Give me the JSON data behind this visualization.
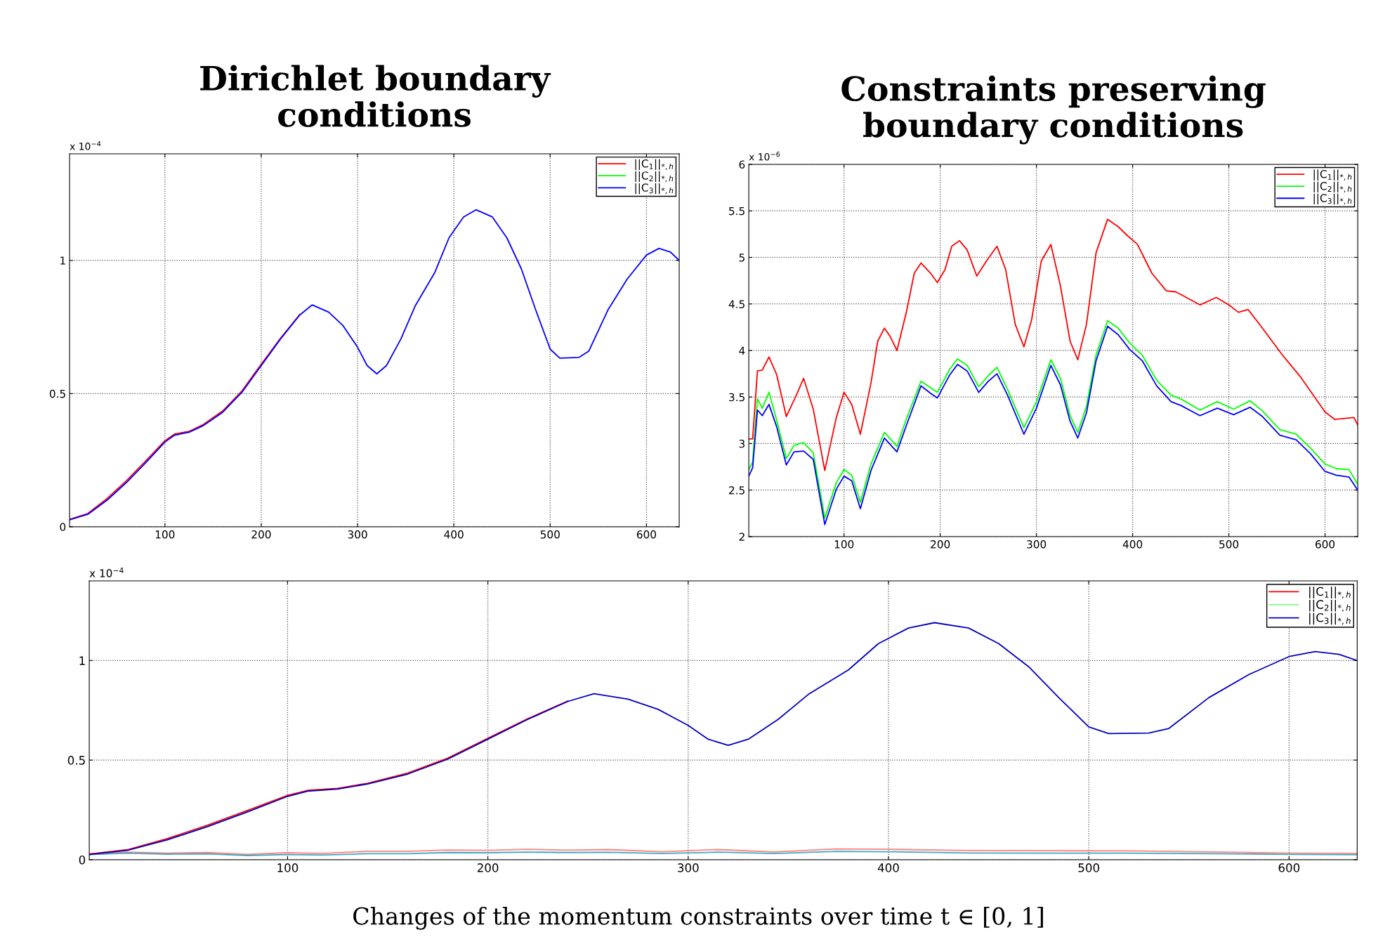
{
  "chart_data": [
    {
      "type": "line",
      "title": "Dirichlet boundary\nconditions",
      "xlim": [
        1,
        634
      ],
      "ylim": [
        0,
        1.4
      ],
      "xticks": [
        100,
        200,
        300,
        400,
        500,
        600
      ],
      "yticks": [
        0,
        0.5,
        1
      ],
      "grid": true,
      "legend": "top right",
      "line_style": "solid",
      "annotations": [
        "x 10$^{−4}$"
      ],
      "series": [
        {
          "name": "||C$_{1}$||$_{*,h}$",
          "color": "#ff0000",
          "x": [
            1,
            20,
            40,
            60,
            80,
            100,
            110,
            125,
            140,
            160,
            180,
            200,
            220,
            240
          ],
          "values": [
            0.028,
            0.05,
            0.106,
            0.173,
            0.247,
            0.323,
            0.348,
            0.358,
            0.384,
            0.435,
            0.51,
            0.61,
            0.708,
            0.797
          ]
        },
        {
          "name": "||C$_{2}$||$_{*,h}$",
          "color": "#00ff00"
        },
        {
          "name": "||C$_{3}$||$_{*,h}$",
          "color": "#0000ff",
          "x": [
            1,
            20,
            40,
            60,
            80,
            100,
            110,
            125,
            140,
            160,
            180,
            200,
            220,
            240,
            253,
            270,
            285,
            300,
            310,
            320,
            330,
            345,
            360,
            380,
            395,
            410,
            423,
            440,
            455,
            470,
            485,
            500,
            510,
            530,
            540,
            560,
            580,
            600,
            613,
            625,
            634
          ],
          "values": [
            0.026,
            0.047,
            0.1,
            0.166,
            0.24,
            0.318,
            0.344,
            0.355,
            0.38,
            0.43,
            0.505,
            0.605,
            0.705,
            0.795,
            0.833,
            0.806,
            0.755,
            0.674,
            0.605,
            0.574,
            0.605,
            0.705,
            0.83,
            0.953,
            1.085,
            1.163,
            1.19,
            1.163,
            1.085,
            0.969,
            0.814,
            0.667,
            0.633,
            0.636,
            0.659,
            0.814,
            0.93,
            1.02,
            1.045,
            1.031,
            1.0
          ]
        }
      ]
    },
    {
      "type": "line",
      "title": "Constraints preserving\nboundary conditions",
      "xlim": [
        1,
        634
      ],
      "ylim": [
        2,
        6
      ],
      "xticks": [
        100,
        200,
        300,
        400,
        500,
        600
      ],
      "yticks": [
        2,
        2.5,
        3,
        3.5,
        4,
        4.5,
        5,
        5.5,
        6
      ],
      "grid": true,
      "legend": "top right",
      "line_style": "solid",
      "annotations": [
        "x 10$^{−6}$"
      ],
      "series": [
        {
          "name": "||C$_{1}$||$_{*,h}$",
          "color": "#ff0000",
          "x": [
            1,
            5,
            10,
            15,
            22,
            30,
            40,
            50,
            58,
            68,
            80,
            92,
            100,
            108,
            117,
            128,
            135,
            142,
            148,
            155,
            165,
            173,
            180,
            190,
            197,
            205,
            212,
            220,
            228,
            238,
            248,
            259,
            268,
            278,
            287,
            295,
            305,
            315,
            325,
            335,
            343,
            352,
            362,
            374,
            385,
            395,
            405,
            420,
            435,
            445,
            470,
            487,
            500,
            510,
            520,
            535,
            555,
            575,
            600,
            610,
            630,
            634
          ],
          "values": [
            3.05,
            3.05,
            3.78,
            3.79,
            3.93,
            3.74,
            3.29,
            3.51,
            3.7,
            3.37,
            2.71,
            3.28,
            3.55,
            3.42,
            3.1,
            3.65,
            4.1,
            4.24,
            4.15,
            4.0,
            4.42,
            4.83,
            4.94,
            4.83,
            4.73,
            4.87,
            5.12,
            5.18,
            5.08,
            4.8,
            4.96,
            5.12,
            4.87,
            4.28,
            4.04,
            4.33,
            4.96,
            5.14,
            4.69,
            4.1,
            3.9,
            4.28,
            5.05,
            5.41,
            5.33,
            5.23,
            5.14,
            4.83,
            4.64,
            4.63,
            4.49,
            4.57,
            4.49,
            4.41,
            4.44,
            4.24,
            3.96,
            3.71,
            3.34,
            3.26,
            3.28,
            3.2
          ]
        },
        {
          "name": "||C$_{2}$||$_{*,h}$",
          "color": "#00ff00",
          "x": [
            1,
            5,
            10,
            15,
            22,
            30,
            40,
            48,
            58,
            68,
            80,
            92,
            100,
            108,
            117,
            128,
            142,
            155,
            165,
            180,
            190,
            197,
            210,
            218,
            228,
            240,
            250,
            259,
            270,
            287,
            300,
            315,
            325,
            335,
            343,
            352,
            362,
            374,
            385,
            397,
            410,
            425,
            440,
            450,
            470,
            488,
            505,
            522,
            535,
            553,
            570,
            585,
            600,
            612,
            625,
            634
          ],
          "values": [
            2.72,
            2.8,
            3.48,
            3.38,
            3.55,
            3.25,
            2.84,
            2.98,
            3.01,
            2.9,
            2.2,
            2.58,
            2.72,
            2.66,
            2.37,
            2.78,
            3.12,
            2.97,
            3.27,
            3.67,
            3.6,
            3.55,
            3.8,
            3.91,
            3.84,
            3.61,
            3.73,
            3.82,
            3.58,
            3.17,
            3.45,
            3.9,
            3.7,
            3.3,
            3.12,
            3.4,
            3.95,
            4.32,
            4.24,
            4.08,
            3.95,
            3.68,
            3.52,
            3.48,
            3.36,
            3.45,
            3.37,
            3.46,
            3.35,
            3.15,
            3.1,
            2.95,
            2.78,
            2.73,
            2.72,
            2.56
          ]
        },
        {
          "name": "||C$_{3}$||$_{*,h}$",
          "color": "#0000ff",
          "x": [
            1,
            5,
            10,
            15,
            22,
            30,
            40,
            48,
            58,
            68,
            80,
            92,
            100,
            108,
            117,
            128,
            142,
            155,
            165,
            180,
            190,
            197,
            210,
            218,
            228,
            240,
            250,
            259,
            270,
            287,
            300,
            315,
            325,
            335,
            343,
            352,
            362,
            374,
            385,
            397,
            410,
            425,
            440,
            450,
            470,
            488,
            505,
            522,
            535,
            553,
            570,
            585,
            600,
            612,
            625,
            634
          ],
          "values": [
            2.65,
            2.74,
            3.36,
            3.3,
            3.42,
            3.18,
            2.77,
            2.91,
            2.92,
            2.83,
            2.13,
            2.51,
            2.65,
            2.6,
            2.3,
            2.71,
            3.06,
            2.91,
            3.2,
            3.62,
            3.54,
            3.49,
            3.74,
            3.85,
            3.78,
            3.55,
            3.67,
            3.75,
            3.52,
            3.1,
            3.38,
            3.84,
            3.63,
            3.24,
            3.06,
            3.33,
            3.89,
            4.26,
            4.17,
            4.01,
            3.89,
            3.62,
            3.45,
            3.41,
            3.3,
            3.38,
            3.31,
            3.39,
            3.29,
            3.09,
            3.04,
            2.89,
            2.7,
            2.66,
            2.64,
            2.5
          ]
        }
      ]
    },
    {
      "type": "line",
      "xlim": [
        1,
        634
      ],
      "ylim": [
        0,
        1.4
      ],
      "xticks": [
        100,
        200,
        300,
        400,
        500,
        600
      ],
      "yticks": [
        0,
        0.5,
        1
      ],
      "grid": true,
      "legend": "top right",
      "line_style": "solid",
      "annotations": [
        "x 10$^{−4}$",
        "Changes of the momentum constraints over time t ∈ [0, 1]"
      ],
      "series": [
        {
          "color": "#ff8080",
          "x": [
            1,
            20,
            40,
            60,
            80,
            100,
            117,
            140,
            160,
            180,
            200,
            220,
            240,
            260,
            287,
            315,
            343,
            374,
            400,
            440,
            480,
            520,
            560,
            600,
            634
          ],
          "values": [
            0.03,
            0.038,
            0.033,
            0.036,
            0.027,
            0.035,
            0.031,
            0.042,
            0.042,
            0.049,
            0.047,
            0.052,
            0.048,
            0.051,
            0.04,
            0.051,
            0.039,
            0.054,
            0.052,
            0.046,
            0.045,
            0.044,
            0.039,
            0.033,
            0.032
          ]
        },
        {
          "color": "#40a8c0",
          "x": [
            1,
            20,
            40,
            60,
            80,
            100,
            117,
            140,
            160,
            180,
            200,
            220,
            240,
            260,
            287,
            315,
            343,
            374,
            400,
            440,
            480,
            520,
            560,
            600,
            634
          ],
          "values": [
            0.026,
            0.033,
            0.028,
            0.029,
            0.021,
            0.026,
            0.023,
            0.03,
            0.03,
            0.036,
            0.035,
            0.038,
            0.036,
            0.037,
            0.031,
            0.038,
            0.031,
            0.042,
            0.04,
            0.034,
            0.033,
            0.033,
            0.03,
            0.027,
            0.025
          ]
        },
        {
          "name": "||C$_{1}$||$_{*,h}$",
          "color": "#ff0000",
          "x": [
            1,
            20,
            40,
            60,
            80,
            100,
            110,
            125,
            140,
            160,
            180,
            200,
            220,
            240
          ],
          "values": [
            0.028,
            0.05,
            0.106,
            0.173,
            0.247,
            0.323,
            0.348,
            0.358,
            0.384,
            0.435,
            0.51,
            0.61,
            0.708,
            0.797
          ]
        },
        {
          "name": "||C$_{2}$||$_{*,h}$",
          "color": "#80ff80"
        },
        {
          "name": "||C$_{3}$||$_{*,h}$",
          "color": "#0000c0",
          "x": [
            1,
            20,
            40,
            60,
            80,
            100,
            110,
            125,
            140,
            160,
            180,
            200,
            220,
            240,
            253,
            270,
            285,
            300,
            310,
            320,
            330,
            345,
            360,
            380,
            395,
            410,
            423,
            440,
            455,
            470,
            485,
            500,
            510,
            530,
            540,
            560,
            580,
            600,
            613,
            625,
            634
          ],
          "values": [
            0.026,
            0.047,
            0.1,
            0.166,
            0.24,
            0.318,
            0.344,
            0.355,
            0.38,
            0.43,
            0.505,
            0.605,
            0.705,
            0.795,
            0.833,
            0.806,
            0.755,
            0.674,
            0.605,
            0.574,
            0.605,
            0.705,
            0.83,
            0.953,
            1.085,
            1.163,
            1.19,
            1.163,
            1.085,
            0.969,
            0.814,
            0.667,
            0.633,
            0.636,
            0.659,
            0.814,
            0.93,
            1.02,
            1.045,
            1.031,
            1.0
          ]
        }
      ]
    }
  ]
}
